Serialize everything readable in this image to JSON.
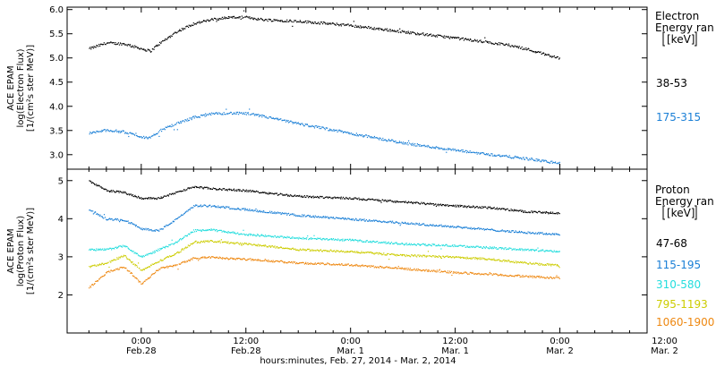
{
  "chart_data": [
    {
      "type": "scatter",
      "panel": "electron",
      "ylabel_lines": [
        "ACE EPAM",
        "log(Electron Flux)",
        "[1/(cm²s ster MeV)]"
      ],
      "ylim": [
        2.7,
        6.05
      ],
      "yticks": [
        3.0,
        3.5,
        4.0,
        4.5,
        5.0,
        5.5,
        6.0
      ],
      "ytick_labels": [
        "3.0",
        "3.5",
        "4.0",
        "4.5",
        "5.0",
        "5.5",
        "6.0"
      ],
      "legend_title": [
        "Electron",
        "Energy ran",
        "[keV]"
      ],
      "series": [
        {
          "name": "38-53",
          "color": "#000000",
          "x": [
            -6,
            -4,
            -2,
            0,
            1,
            2,
            4,
            6,
            8,
            10,
            12,
            14,
            18,
            24,
            30,
            36,
            42,
            44,
            48
          ],
          "y": [
            5.2,
            5.32,
            5.3,
            5.2,
            5.15,
            5.3,
            5.55,
            5.72,
            5.8,
            5.85,
            5.85,
            5.8,
            5.77,
            5.68,
            5.55,
            5.42,
            5.28,
            5.2,
            5.0
          ]
        },
        {
          "name": "175-315",
          "color": "#1a7fd6",
          "x": [
            -6,
            -4,
            -2,
            0,
            1,
            2,
            4,
            6,
            8,
            10,
            12,
            14,
            18,
            24,
            30,
            36,
            42,
            44,
            48
          ],
          "y": [
            3.45,
            3.52,
            3.48,
            3.38,
            3.35,
            3.5,
            3.65,
            3.78,
            3.85,
            3.87,
            3.86,
            3.8,
            3.65,
            3.45,
            3.25,
            3.1,
            2.97,
            2.93,
            2.83
          ]
        }
      ]
    },
    {
      "type": "scatter",
      "panel": "proton",
      "ylabel_lines": [
        "ACE EPAM",
        "log(Proton Flux)",
        "[1/(cm²s ster MeV)]"
      ],
      "ylim": [
        1.0,
        5.3
      ],
      "yticks": [
        2,
        3,
        4,
        5
      ],
      "ytick_labels": [
        "2",
        "3",
        "4",
        "5"
      ],
      "legend_title": [
        "Proton",
        "Energy ran",
        "[keV]"
      ],
      "series": [
        {
          "name": "47-68",
          "color": "#000000",
          "x": [
            -6,
            -4,
            -2,
            0,
            2,
            4,
            6,
            8,
            12,
            18,
            24,
            30,
            36,
            40,
            44,
            48
          ],
          "y": [
            5.0,
            4.75,
            4.7,
            4.55,
            4.55,
            4.7,
            4.85,
            4.8,
            4.75,
            4.6,
            4.55,
            4.45,
            4.35,
            4.3,
            4.2,
            4.15
          ]
        },
        {
          "name": "115-195",
          "color": "#1a7fd6",
          "x": [
            -6,
            -4,
            -2,
            0,
            2,
            4,
            6,
            8,
            12,
            18,
            24,
            30,
            36,
            40,
            44,
            48
          ],
          "y": [
            4.25,
            4.0,
            3.98,
            3.75,
            3.7,
            4.0,
            4.35,
            4.35,
            4.25,
            4.1,
            4.0,
            3.9,
            3.8,
            3.72,
            3.65,
            3.6
          ]
        },
        {
          "name": "310-580",
          "color": "#22dddd",
          "x": [
            -6,
            -4,
            -2,
            0,
            2,
            4,
            6,
            8,
            12,
            18,
            24,
            30,
            36,
            40,
            44,
            48
          ],
          "y": [
            3.2,
            3.2,
            3.3,
            3.0,
            3.2,
            3.4,
            3.7,
            3.72,
            3.6,
            3.5,
            3.45,
            3.35,
            3.3,
            3.25,
            3.2,
            3.15
          ]
        },
        {
          "name": "795-1193",
          "color": "#cccc00",
          "x": [
            -6,
            -4,
            -2,
            0,
            2,
            4,
            6,
            8,
            12,
            18,
            24,
            30,
            36,
            40,
            44,
            48
          ],
          "y": [
            2.75,
            2.85,
            3.05,
            2.65,
            2.9,
            3.1,
            3.4,
            3.42,
            3.35,
            3.2,
            3.15,
            3.05,
            3.0,
            2.95,
            2.85,
            2.78
          ]
        },
        {
          "name": "1060-1900",
          "color": "#ee8811",
          "x": [
            -6,
            -4,
            -2,
            0,
            2,
            4,
            6,
            8,
            12,
            18,
            24,
            30,
            36,
            40,
            44,
            48
          ],
          "y": [
            2.2,
            2.6,
            2.75,
            2.3,
            2.7,
            2.8,
            2.98,
            3.0,
            2.95,
            2.85,
            2.8,
            2.7,
            2.6,
            2.55,
            2.5,
            2.45
          ]
        }
      ]
    }
  ],
  "x_axis": {
    "xlim": [
      -8.5,
      58
    ],
    "tick_positions": [
      0,
      12,
      24,
      36,
      48
    ],
    "tick_labels_top": [
      "0:00",
      "12:00",
      "0:00",
      "12:00",
      "0:00",
      "12:00"
    ],
    "tick_labels_bottom": [
      "Feb.28",
      "Feb.28",
      "Mar. 1",
      "Mar. 1",
      "Mar. 2",
      "Mar. 2"
    ],
    "tick_hours": [
      0,
      12,
      24,
      36,
      48,
      60
    ],
    "xlabel": "hours:minutes, Feb. 27, 2014 - Mar.  2, 2014"
  }
}
